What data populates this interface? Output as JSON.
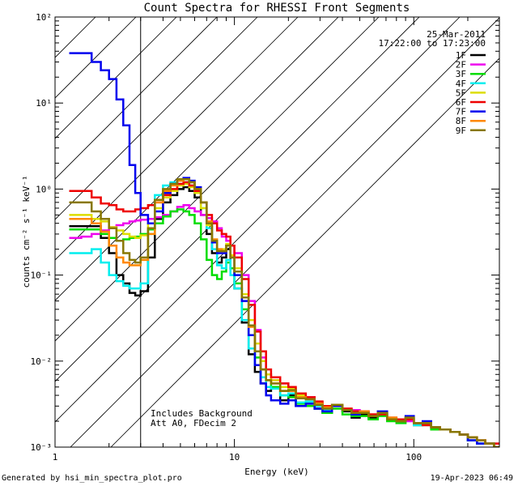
{
  "footer": {
    "left": "Generated by hsi_min_spectra_plot.pro",
    "right": "19-Apr-2023 06:49"
  },
  "chart_data": {
    "type": "line",
    "title": "Count Spectra for RHESSI Front Segments",
    "xlabel": "Energy (keV)",
    "ylabel": "counts cm⁻² s⁻¹ keV⁻¹",
    "xscale": "log",
    "yscale": "log",
    "xlim": [
      1,
      300
    ],
    "ylim": [
      0.001,
      100
    ],
    "x_tick_labels": [
      {
        "value": 1,
        "label": "1"
      },
      {
        "value": 10,
        "label": "10"
      },
      {
        "value": 100,
        "label": "100"
      }
    ],
    "y_tick_labels": [
      {
        "value": 0.001,
        "label": "10⁻³"
      },
      {
        "value": 0.01,
        "label": "10⁻²"
      },
      {
        "value": 0.1,
        "label": "10⁻¹"
      },
      {
        "value": 1,
        "label": "10⁰"
      },
      {
        "value": 10,
        "label": "10¹"
      },
      {
        "value": 100,
        "label": "10²"
      }
    ],
    "date": "25-Mar-2011",
    "time_range": "17:22:00 to 17:23:00",
    "annotations": [
      "Includes Background",
      "Att A0, FDecim 2"
    ],
    "hatched_region_x": [
      1,
      3
    ],
    "legend_position": "top-right",
    "energy_bins": [
      1.2,
      1.4,
      1.6,
      1.8,
      2.0,
      2.2,
      2.4,
      2.6,
      2.8,
      3.0,
      3.3,
      3.6,
      4.0,
      4.4,
      4.8,
      5.2,
      5.6,
      6.0,
      6.5,
      7.0,
      7.5,
      8.0,
      8.5,
      9.0,
      9.5,
      10,
      11,
      12,
      13,
      14,
      15,
      16,
      18,
      20,
      22,
      25,
      28,
      31,
      35,
      40,
      45,
      50,
      56,
      63,
      71,
      80,
      90,
      100,
      112,
      125,
      140,
      160,
      180,
      200,
      225,
      250,
      280,
      300
    ],
    "series": [
      {
        "name": "1F",
        "color": "#000000",
        "values": [
          0.37,
          0.37,
          0.37,
          0.27,
          0.18,
          0.1,
          0.08,
          0.062,
          0.058,
          0.065,
          0.16,
          0.45,
          0.7,
          0.85,
          1.0,
          1.05,
          0.95,
          0.8,
          0.5,
          0.3,
          0.18,
          0.14,
          0.16,
          0.2,
          0.12,
          0.07,
          0.028,
          0.012,
          0.0075,
          0.0055,
          0.0045,
          0.005,
          0.0035,
          0.004,
          0.003,
          0.0032,
          0.0028,
          0.0025,
          0.003,
          0.0026,
          0.0022,
          0.0024,
          0.0022,
          0.0025,
          0.0021,
          0.002,
          0.0022,
          0.0018,
          0.0019,
          0.0017,
          0.0016,
          0.0015,
          0.0014,
          0.0012,
          0.0011,
          0.0011,
          0.001,
          0.001
        ]
      },
      {
        "name": "2F",
        "color": "#ee00ee",
        "values": [
          0.27,
          0.28,
          0.3,
          0.33,
          0.36,
          0.38,
          0.4,
          0.42,
          0.43,
          0.44,
          0.45,
          0.47,
          0.5,
          0.55,
          0.62,
          0.65,
          0.6,
          0.55,
          0.5,
          0.46,
          0.42,
          0.35,
          0.28,
          0.25,
          0.22,
          0.18,
          0.1,
          0.05,
          0.023,
          0.011,
          0.007,
          0.006,
          0.0055,
          0.0045,
          0.004,
          0.0038,
          0.0033,
          0.003,
          0.003,
          0.0028,
          0.0027,
          0.0026,
          0.0024,
          0.0024,
          0.0022,
          0.0021,
          0.002,
          0.0019,
          0.0018,
          0.0017,
          0.0016,
          0.0015,
          0.0014,
          0.0013,
          0.0012,
          0.0011,
          0.0011,
          0.001
        ]
      },
      {
        "name": "3F",
        "color": "#00dd00",
        "values": [
          0.34,
          0.34,
          0.34,
          0.3,
          0.27,
          0.25,
          0.26,
          0.27,
          0.28,
          0.3,
          0.34,
          0.4,
          0.48,
          0.55,
          0.58,
          0.55,
          0.5,
          0.4,
          0.26,
          0.15,
          0.1,
          0.09,
          0.11,
          0.14,
          0.12,
          0.08,
          0.04,
          0.02,
          0.011,
          0.008,
          0.006,
          0.005,
          0.004,
          0.0038,
          0.0032,
          0.003,
          0.0028,
          0.0025,
          0.0028,
          0.0024,
          0.0023,
          0.0023,
          0.0021,
          0.0023,
          0.002,
          0.0019,
          0.0021,
          0.0018,
          0.0018,
          0.0016,
          0.0016,
          0.0015,
          0.0014,
          0.0012,
          0.0011,
          0.0011,
          0.001,
          0.001
        ]
      },
      {
        "name": "4F",
        "color": "#00eeee",
        "values": [
          0.18,
          0.18,
          0.2,
          0.14,
          0.1,
          0.085,
          0.075,
          0.07,
          0.07,
          0.08,
          0.3,
          0.85,
          1.1,
          1.2,
          1.25,
          1.2,
          1.1,
          0.9,
          0.6,
          0.35,
          0.2,
          0.13,
          0.12,
          0.15,
          0.1,
          0.07,
          0.03,
          0.014,
          0.009,
          0.0065,
          0.005,
          0.0048,
          0.004,
          0.0042,
          0.0033,
          0.0034,
          0.003,
          0.0027,
          0.003,
          0.0027,
          0.0024,
          0.0025,
          0.0023,
          0.0025,
          0.0021,
          0.002,
          0.0022,
          0.0018,
          0.0019,
          0.0017,
          0.0016,
          0.0015,
          0.0014,
          0.0012,
          0.0011,
          0.0011,
          0.001,
          0.001
        ]
      },
      {
        "name": "5F",
        "color": "#dddd00",
        "values": [
          0.5,
          0.5,
          0.45,
          0.42,
          0.36,
          0.33,
          0.3,
          0.28,
          0.27,
          0.29,
          0.4,
          0.6,
          0.8,
          0.95,
          1.1,
          1.15,
          1.05,
          0.9,
          0.6,
          0.38,
          0.25,
          0.2,
          0.2,
          0.23,
          0.17,
          0.12,
          0.06,
          0.03,
          0.016,
          0.01,
          0.007,
          0.006,
          0.005,
          0.0048,
          0.004,
          0.0037,
          0.0033,
          0.003,
          0.0031,
          0.0028,
          0.0026,
          0.0026,
          0.0024,
          0.0025,
          0.0022,
          0.0021,
          0.0022,
          0.0019,
          0.0019,
          0.0017,
          0.0016,
          0.0015,
          0.0014,
          0.0013,
          0.0012,
          0.0011,
          0.001,
          0.001
        ]
      },
      {
        "name": "6F",
        "color": "#ee0000",
        "values": [
          0.95,
          0.95,
          0.8,
          0.68,
          0.65,
          0.58,
          0.55,
          0.55,
          0.58,
          0.6,
          0.65,
          0.7,
          0.85,
          1.0,
          1.15,
          1.2,
          1.1,
          0.95,
          0.7,
          0.5,
          0.4,
          0.33,
          0.3,
          0.28,
          0.22,
          0.16,
          0.09,
          0.045,
          0.022,
          0.013,
          0.008,
          0.0065,
          0.0055,
          0.005,
          0.0042,
          0.0038,
          0.0034,
          0.003,
          0.003,
          0.0028,
          0.0026,
          0.0026,
          0.0024,
          0.0024,
          0.0022,
          0.0021,
          0.0021,
          0.0019,
          0.0018,
          0.0017,
          0.0016,
          0.0015,
          0.0014,
          0.0013,
          0.0012,
          0.0011,
          0.0011,
          0.001
        ]
      },
      {
        "name": "7F",
        "color": "#0000ee",
        "values": [
          38,
          38,
          30,
          24,
          19,
          11,
          5.5,
          1.9,
          0.9,
          0.5,
          0.4,
          0.55,
          0.9,
          1.15,
          1.3,
          1.35,
          1.25,
          1.05,
          0.7,
          0.4,
          0.24,
          0.18,
          0.18,
          0.22,
          0.16,
          0.1,
          0.05,
          0.02,
          0.009,
          0.0055,
          0.004,
          0.0035,
          0.0032,
          0.0035,
          0.003,
          0.0032,
          0.0028,
          0.0026,
          0.003,
          0.0027,
          0.0024,
          0.0025,
          0.0023,
          0.0026,
          0.0021,
          0.002,
          0.0023,
          0.0019,
          0.002,
          0.0017,
          0.0016,
          0.0015,
          0.0014,
          0.0012,
          0.0011,
          0.0011,
          0.001,
          0.001
        ]
      },
      {
        "name": "8F",
        "color": "#ff8800",
        "values": [
          0.45,
          0.45,
          0.4,
          0.32,
          0.22,
          0.16,
          0.14,
          0.13,
          0.13,
          0.15,
          0.3,
          0.7,
          0.95,
          1.1,
          1.25,
          1.3,
          1.2,
          1.0,
          0.7,
          0.42,
          0.26,
          0.2,
          0.19,
          0.22,
          0.16,
          0.11,
          0.055,
          0.025,
          0.013,
          0.008,
          0.006,
          0.0055,
          0.0045,
          0.0045,
          0.0038,
          0.0036,
          0.0032,
          0.0029,
          0.0031,
          0.0027,
          0.0025,
          0.0026,
          0.0023,
          0.0025,
          0.0022,
          0.002,
          0.0022,
          0.0019,
          0.0019,
          0.0017,
          0.0016,
          0.0015,
          0.0014,
          0.0013,
          0.0012,
          0.0011,
          0.001,
          0.001
        ]
      },
      {
        "name": "9F",
        "color": "#887700",
        "values": [
          0.7,
          0.7,
          0.55,
          0.45,
          0.35,
          0.25,
          0.18,
          0.15,
          0.14,
          0.16,
          0.35,
          0.75,
          1.0,
          1.15,
          1.3,
          1.3,
          1.2,
          1.0,
          0.7,
          0.4,
          0.25,
          0.19,
          0.19,
          0.22,
          0.16,
          0.11,
          0.055,
          0.026,
          0.013,
          0.008,
          0.006,
          0.0055,
          0.0045,
          0.0046,
          0.0037,
          0.0036,
          0.0031,
          0.0028,
          0.0031,
          0.0027,
          0.0025,
          0.0025,
          0.0023,
          0.0025,
          0.0021,
          0.002,
          0.0022,
          0.0019,
          0.0019,
          0.0017,
          0.0016,
          0.0015,
          0.0014,
          0.0013,
          0.0012,
          0.0011,
          0.001,
          0.001
        ]
      }
    ]
  }
}
